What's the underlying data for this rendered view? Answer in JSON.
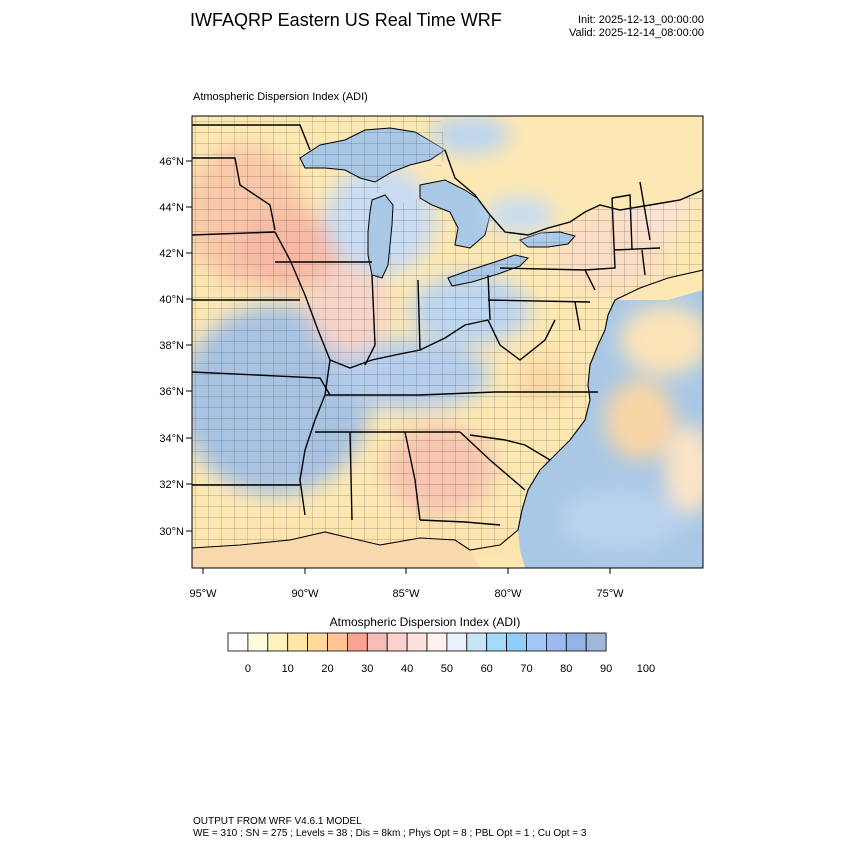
{
  "header": {
    "title": "IWFAQRP Eastern US Real Time WRF",
    "init_text": "Init: 2025-12-13_00:00:00",
    "valid_text": "Valid: 2025-12-14_08:00:00"
  },
  "panel": {
    "label": "Atmospheric Dispersion Index   (ADI)"
  },
  "map": {
    "lat_labels": [
      "46°N",
      "44°N",
      "42°N",
      "40°N",
      "38°N",
      "36°N",
      "34°N",
      "32°N",
      "30°N"
    ],
    "lon_labels": [
      "95°W",
      "90°W",
      "85°W",
      "80°W",
      "75°W"
    ],
    "colors": {
      "land_background": "#fde8b3",
      "water": "#a9c8e6",
      "border": "#000000"
    }
  },
  "colorbar": {
    "title": "Atmospheric Dispersion Index  (ADI)",
    "tick_labels": [
      "0",
      "10",
      "20",
      "30",
      "40",
      "50",
      "60",
      "70",
      "80",
      "90",
      "100"
    ],
    "colors": [
      "#ffffff",
      "#fffbe0",
      "#fff2bf",
      "#ffe7a8",
      "#ffd99a",
      "#ffc593",
      "#f9a393",
      "#f7bdb5",
      "#fad2cc",
      "#fbe2dc",
      "#fdf1ef",
      "#e9f1fb",
      "#c8e4f7",
      "#a3dafa",
      "#8fcdfb",
      "#a5c7f7",
      "#9eb9ef",
      "#93b3e6",
      "#a0b8d8"
    ]
  },
  "footer": {
    "line1": "OUTPUT FROM WRF V4.6.1 MODEL",
    "line2": "WE = 310 ; SN = 275 ; Levels = 38 ; Dis = 8km ; Phys Opt = 8 ; PBL Opt = 1 ; Cu Opt = 3"
  }
}
